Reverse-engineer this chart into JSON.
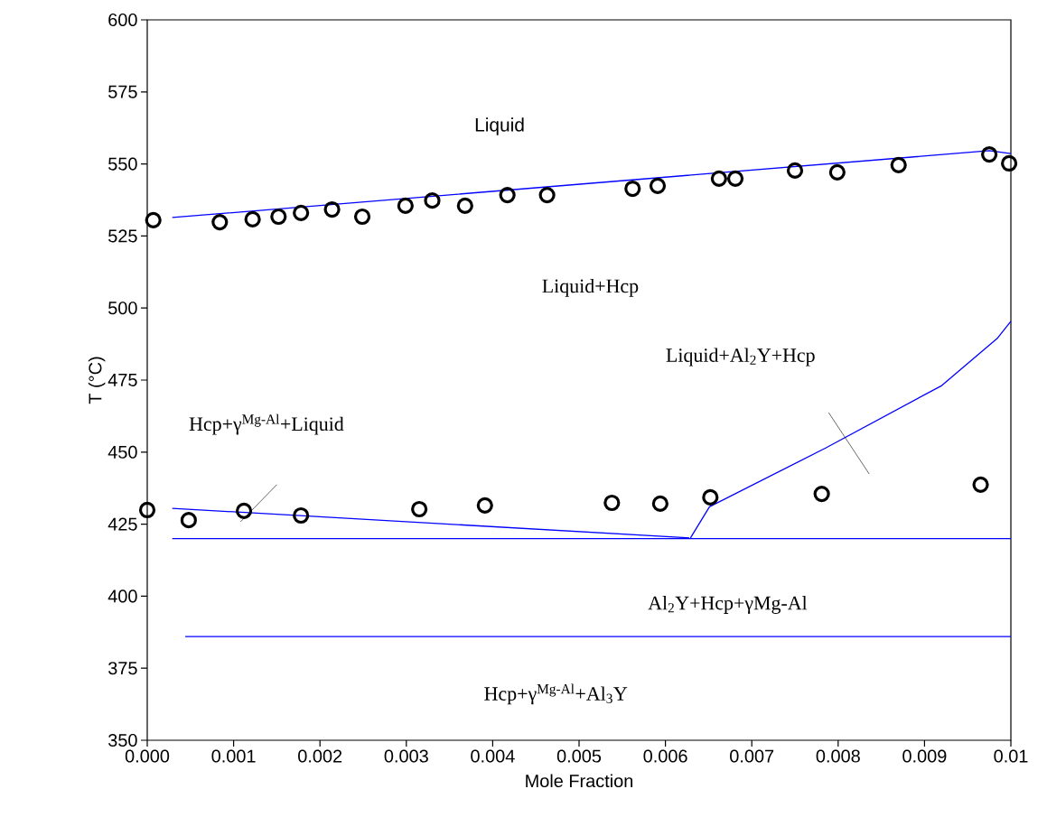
{
  "chart_data": {
    "type": "line",
    "xlabel": "Mole Fraction",
    "ylabel": "T (°C)",
    "xlim": [
      0,
      0.01
    ],
    "ylim": [
      350,
      600
    ],
    "xticks": [
      {
        "value": 0,
        "label": "0.000"
      },
      {
        "value": 0.001,
        "label": "0.001"
      },
      {
        "value": 0.002,
        "label": "0.002"
      },
      {
        "value": 0.003,
        "label": "0.003"
      },
      {
        "value": 0.004,
        "label": "0.004"
      },
      {
        "value": 0.005,
        "label": "0.005"
      },
      {
        "value": 0.006,
        "label": "0.006"
      },
      {
        "value": 0.007,
        "label": "0.007"
      },
      {
        "value": 0.008,
        "label": "0.008"
      },
      {
        "value": 0.009,
        "label": "0.009"
      },
      {
        "value": 0.01,
        "label": "0.01"
      }
    ],
    "yticks": [
      350,
      375,
      400,
      425,
      450,
      475,
      500,
      525,
      550,
      575,
      600
    ],
    "grid": false,
    "series": [
      {
        "type": "scatter",
        "marker": "circle",
        "color": "#000000",
        "x": [
          7e-05,
          0.00084,
          0.00122,
          0.00152,
          0.00178,
          0.00214,
          0.00249,
          0.00299,
          0.0033,
          0.00368,
          0.00417,
          0.00463,
          0.00562,
          0.00591,
          0.00662,
          0.00681,
          0.0075,
          0.00799,
          0.0087,
          0.00975,
          0.00998
        ],
        "values": [
          530.5,
          529.8,
          530.8,
          531.7,
          533.0,
          534.2,
          531.7,
          535.5,
          537.3,
          535.5,
          539.2,
          539.2,
          541.4,
          542.4,
          544.9,
          544.9,
          547.7,
          547.1,
          549.6,
          553.3,
          550.2
        ]
      },
      {
        "type": "scatter",
        "marker": "circle",
        "color": "#000000",
        "x": [
          0.0,
          0.00048,
          0.00112,
          0.00178,
          0.00315,
          0.00391,
          0.00538,
          0.00594,
          0.00652,
          0.00781,
          0.00965
        ],
        "values": [
          429.9,
          426.4,
          429.6,
          428.0,
          430.2,
          431.5,
          432.4,
          432.1,
          434.3,
          435.5,
          438.7
        ]
      },
      {
        "marker": "none",
        "color": "#0000ff",
        "x": [
          0.00029,
          0.00975,
          0.01
        ],
        "values": [
          531.4,
          554.6,
          553.6
        ]
      },
      {
        "marker": "none",
        "color": "#0000ff",
        "x": [
          0.00029,
          0.00629
        ],
        "values": [
          430.5,
          420.2
        ]
      },
      {
        "marker": "none",
        "color": "#0000ff",
        "x": [
          0.00629,
          0.00651,
          0.00786,
          0.0092,
          0.00984,
          0.01
        ],
        "values": [
          420.2,
          431.0,
          451.5,
          473.1,
          489.4,
          495.4
        ]
      },
      {
        "marker": "none",
        "color": "#0000ff",
        "x": [
          0.00029,
          0.01
        ],
        "values": [
          420.0,
          420.0
        ]
      },
      {
        "marker": "none",
        "color": "#0000ff",
        "x": [
          0.00044,
          0.01
        ],
        "values": [
          386.0,
          386.0
        ]
      }
    ],
    "annotations": [
      "Liquid",
      "Liquid+Hcp",
      "Liquid+Al$_{2}$Y+Hcp",
      "Hcp+γ$^{Mg-Al}$+Liquid",
      "Al$_{2}$Y+Hcp+γMg-Al",
      "Hcp+γ$^{Mg-Al}$+Al$_{3}$Y"
    ]
  }
}
